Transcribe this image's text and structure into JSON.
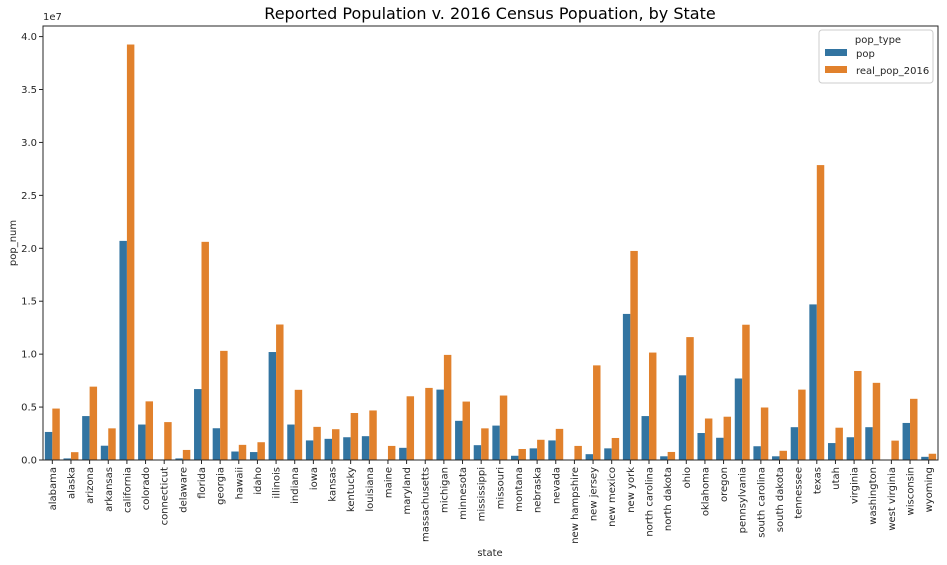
{
  "chart_data": {
    "type": "bar",
    "title": "Reported Population v. 2016 Census Popuation, by State",
    "xlabel": "state",
    "ylabel": "pop_num",
    "y_scale_label": "1e7",
    "ylim": [
      0,
      41000000
    ],
    "y_ticks": [
      0,
      5000000,
      10000000,
      15000000,
      20000000,
      25000000,
      30000000,
      35000000,
      40000000
    ],
    "y_tick_labels": [
      "0.0",
      "0.5",
      "1.0",
      "1.5",
      "2.0",
      "2.5",
      "3.0",
      "3.5",
      "4.0"
    ],
    "grid": false,
    "legend": {
      "title": "pop_type",
      "placement": "top-right"
    },
    "categories": [
      "alabama",
      "alaska",
      "arizona",
      "arkansas",
      "california",
      "colorado",
      "connecticut",
      "delaware",
      "florida",
      "georgia",
      "hawaii",
      "idaho",
      "illinois",
      "indiana",
      "iowa",
      "kansas",
      "kentucky",
      "louisiana",
      "maine",
      "maryland",
      "massachusetts",
      "michigan",
      "minnesota",
      "mississippi",
      "missouri",
      "montana",
      "nebraska",
      "nevada",
      "new hampshire",
      "new jersey",
      "new mexico",
      "new york",
      "north carolina",
      "north dakota",
      "ohio",
      "oklahoma",
      "oregon",
      "pennsylvania",
      "south carolina",
      "south dakota",
      "tennessee",
      "texas",
      "utah",
      "virginia",
      "washington",
      "west virginia",
      "wisconsin",
      "wyoming"
    ],
    "series": [
      {
        "name": "pop",
        "color": "#3274a1",
        "values": [
          2650000,
          150000,
          4150000,
          1350000,
          20700000,
          3350000,
          0,
          150000,
          6700000,
          3000000,
          800000,
          750000,
          10200000,
          3350000,
          1850000,
          2000000,
          2150000,
          2250000,
          0,
          1150000,
          0,
          6650000,
          3700000,
          1400000,
          3250000,
          400000,
          1100000,
          1850000,
          0,
          550000,
          1100000,
          13800000,
          4150000,
          350000,
          8000000,
          2550000,
          2100000,
          7700000,
          1300000,
          350000,
          3100000,
          14700000,
          1600000,
          2150000,
          3100000,
          0,
          3500000,
          300000
        ]
      },
      {
        "name": "real_pop_2016",
        "color": "#e1812c",
        "values": [
          4860000,
          740000,
          6930000,
          2990000,
          39250000,
          5540000,
          3580000,
          950000,
          20610000,
          10310000,
          1430000,
          1680000,
          12800000,
          6630000,
          3130000,
          2910000,
          4440000,
          4680000,
          1330000,
          6020000,
          6810000,
          9930000,
          5520000,
          2990000,
          6090000,
          1040000,
          1910000,
          2940000,
          1330000,
          8940000,
          2080000,
          19750000,
          10150000,
          760000,
          11610000,
          3920000,
          4090000,
          12780000,
          4960000,
          870000,
          6650000,
          27860000,
          3050000,
          8410000,
          7290000,
          1830000,
          5780000,
          590000
        ]
      }
    ]
  }
}
